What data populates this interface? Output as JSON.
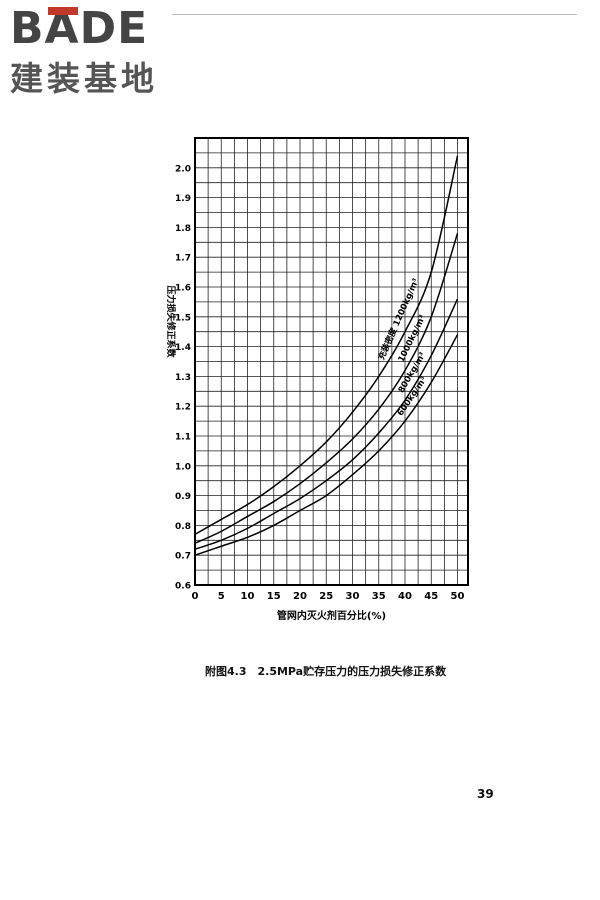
{
  "brand": {
    "name": "BADE",
    "subtitle": "建装基地",
    "accent": "#c0392b"
  },
  "chart_data": {
    "type": "line",
    "title": "",
    "xlabel": "管网内灭火剂百分比(%)",
    "ylabel": "压力损失修正系数",
    "xlim": [
      0,
      52
    ],
    "ylim": [
      0.6,
      2.1
    ],
    "x_ticks": [
      0,
      5,
      10,
      15,
      20,
      25,
      30,
      35,
      40,
      45,
      50
    ],
    "y_ticks": [
      0.6,
      0.7,
      0.8,
      0.9,
      1.0,
      1.1,
      1.2,
      1.3,
      1.4,
      1.5,
      1.6,
      1.7,
      1.8,
      1.9,
      2.0
    ],
    "grid": true,
    "annotation_prefix": "充装密度",
    "series": [
      {
        "name": "1200kg/m³",
        "x": [
          0,
          5,
          10,
          15,
          20,
          25,
          30,
          35,
          40,
          45,
          50
        ],
        "y": [
          0.77,
          0.82,
          0.87,
          0.93,
          1.0,
          1.08,
          1.18,
          1.3,
          1.45,
          1.65,
          2.04
        ]
      },
      {
        "name": "1000kg/m³",
        "x": [
          0,
          5,
          10,
          15,
          20,
          25,
          30,
          35,
          40,
          45,
          50
        ],
        "y": [
          0.74,
          0.78,
          0.83,
          0.88,
          0.94,
          1.01,
          1.09,
          1.19,
          1.32,
          1.5,
          1.78
        ]
      },
      {
        "name": "800kg/m³",
        "x": [
          0,
          5,
          10,
          15,
          20,
          25,
          30,
          35,
          40,
          45,
          50
        ],
        "y": [
          0.72,
          0.75,
          0.79,
          0.84,
          0.89,
          0.95,
          1.02,
          1.11,
          1.22,
          1.37,
          1.56
        ]
      },
      {
        "name": "600kg/m³",
        "x": [
          0,
          5,
          10,
          15,
          20,
          25,
          30,
          35,
          40,
          45,
          50
        ],
        "y": [
          0.7,
          0.73,
          0.76,
          0.8,
          0.85,
          0.9,
          0.97,
          1.05,
          1.15,
          1.28,
          1.44
        ]
      }
    ]
  },
  "caption": "附图4.3　2.5MPa贮存压力的压力损失修正系数",
  "page_number": "39"
}
